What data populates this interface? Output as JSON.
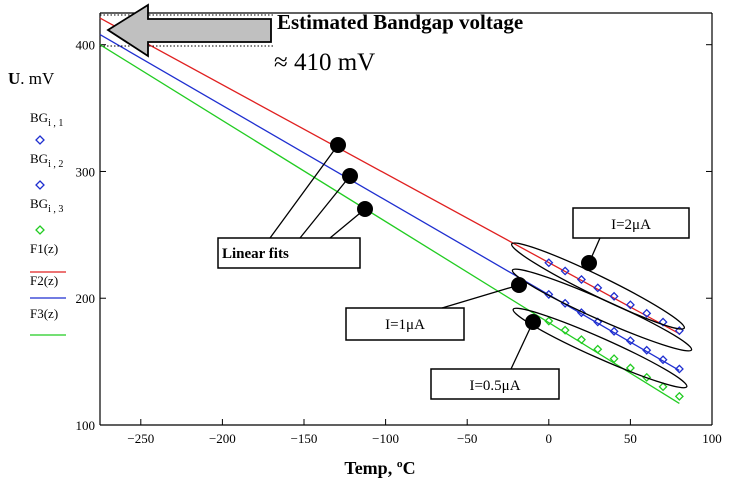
{
  "chart_data": {
    "type": "line",
    "title": "Estimated Bandgap voltage",
    "subtitle": "≈ 410 mV",
    "xlabel": "Temp, ºC",
    "ylabel_bold": "U",
    "ylabel_rest": ". mV",
    "xlim": [
      -275,
      100
    ],
    "ylim": [
      100,
      425
    ],
    "xticks": [
      -250,
      -200,
      -150,
      -100,
      -50,
      0,
      50,
      100
    ],
    "xtick_labels": [
      "−250",
      "−200",
      "−150",
      "−100",
      "−50",
      "0",
      "50",
      "100"
    ],
    "yticks": [
      100,
      200,
      300,
      400
    ],
    "ytick_labels": [
      "100",
      "200",
      "300",
      "400"
    ],
    "legend": [
      {
        "base": "BG",
        "sub": "i , 1",
        "marker": "diamond",
        "color": "#1f2fd0"
      },
      {
        "base": "BG",
        "sub": "i , 2",
        "marker": "diamond",
        "color": "#1f2fd0"
      },
      {
        "base": "BG",
        "sub": "i , 3",
        "marker": "diamond",
        "color": "#22cc22"
      },
      {
        "base": "F1(z)",
        "sub": "",
        "marker": "line",
        "color": "#e02020"
      },
      {
        "base": "F2(z)",
        "sub": "",
        "marker": "line",
        "color": "#1f2fd0"
      },
      {
        "base": "F3(z)",
        "sub": "",
        "marker": "line",
        "color": "#22cc22"
      }
    ],
    "x": [
      0,
      10,
      20,
      30,
      40,
      50,
      60,
      70,
      80
    ],
    "series": [
      {
        "name": "BG i,1",
        "fit": "F1(z)",
        "line_color": "#e02020",
        "marker_color": "#1f2fd0",
        "values": [
          228,
          221.5,
          214.8,
          208.2,
          201.5,
          194.8,
          188.1,
          181.2,
          174.4
        ],
        "fit_line": {
          "x": [
            -275,
            80
          ],
          "y": [
            421,
            172
          ]
        }
      },
      {
        "name": "BG i,2",
        "fit": "F2(z)",
        "line_color": "#1f2fd0",
        "marker_color": "#1f2fd0",
        "values": [
          203,
          196,
          188.6,
          181.3,
          173.9,
          166.5,
          159,
          151.5,
          144.2
        ],
        "fit_line": {
          "x": [
            -275,
            80
          ],
          "y": [
            408,
            143
          ]
        }
      },
      {
        "name": "BG i,3",
        "fit": "F3(z)",
        "line_color": "#22cc22",
        "marker_color": "#22cc22",
        "values": [
          182,
          174.8,
          167.3,
          159.8,
          152.3,
          145,
          137.6,
          130.2,
          122.6
        ],
        "fit_line": {
          "x": [
            -275,
            80
          ],
          "y": [
            400,
            117
          ]
        }
      }
    ],
    "annotations": [
      {
        "text": "Linear fits"
      },
      {
        "text": "I=2μA"
      },
      {
        "text": "I=1μA"
      },
      {
        "text": "I=0.5μA"
      }
    ]
  }
}
